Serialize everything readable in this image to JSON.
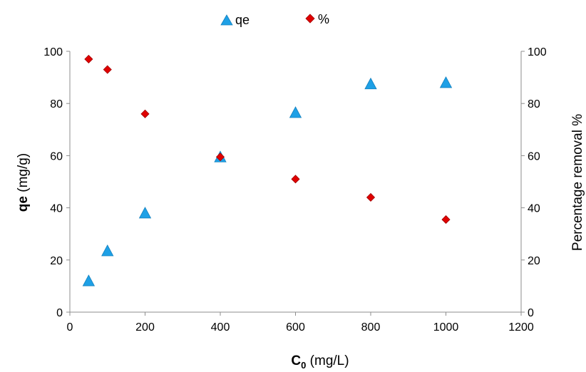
{
  "chart_data": {
    "type": "scatter",
    "x_label": {
      "bold": "C",
      "sub": "0",
      "rest": " (mg/L)"
    },
    "y_left_label": {
      "bold": "qe",
      "rest": " (mg/g)"
    },
    "y_right_label": "Percentage removal %",
    "x_ticks": [
      "0",
      "200",
      "400",
      "600",
      "800",
      "1000",
      "1200"
    ],
    "y_ticks": [
      "0",
      "20",
      "40",
      "60",
      "80",
      "100"
    ],
    "xlim": [
      0,
      1200
    ],
    "ylim_left": [
      0,
      100
    ],
    "ylim_right": [
      0,
      100
    ],
    "series": [
      {
        "name": "qe",
        "marker": "triangle",
        "color": "#1EA0E6",
        "axis": "left",
        "x": [
          50,
          100,
          200,
          400,
          600,
          800,
          1000
        ],
        "y": [
          12,
          23.5,
          38,
          59.5,
          76.5,
          87.5,
          88
        ]
      },
      {
        "name": "%",
        "marker": "diamond",
        "color": "#E00000",
        "axis": "right",
        "x": [
          50,
          100,
          200,
          400,
          600,
          800,
          1000
        ],
        "y": [
          97,
          93,
          76,
          59.5,
          51,
          44,
          35.5
        ]
      }
    ],
    "grid": false,
    "legend_position": "top"
  }
}
